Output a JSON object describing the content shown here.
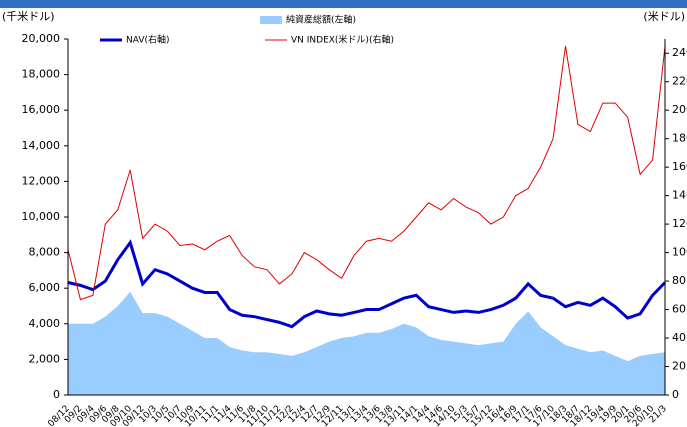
{
  "chart_data": {
    "type": "combo",
    "y_label": "(千米ドル)",
    "y2_label": "(米ドル)",
    "categories": [
      "08/12",
      "09/2",
      "09/4",
      "09/6",
      "09/8",
      "09/10",
      "09/12",
      "10/3",
      "10/5",
      "10/7",
      "10/9",
      "10/11",
      "11/1",
      "11/4",
      "11/6",
      "11/8",
      "11/10",
      "11/12",
      "12/2",
      "12/4",
      "12/7",
      "12/9",
      "12/11",
      "13/1",
      "13/4",
      "13/6",
      "13/8",
      "13/11",
      "14/1",
      "14/4",
      "14/6",
      "14/10",
      "15/3",
      "15/7",
      "15/12",
      "16/4",
      "16/9",
      "17/1",
      "17/6",
      "17/10",
      "18/3",
      "18/7",
      "18/12",
      "19/4",
      "19/9",
      "20/1",
      "20/6",
      "20/10",
      "21/3"
    ],
    "series": [
      {
        "name": "純資産総額(左軸)",
        "type": "area",
        "color": "#99ccff",
        "axis": "y",
        "values": [
          4000,
          4000,
          4000,
          4400,
          5000,
          5800,
          4600,
          4600,
          4400,
          4000,
          3600,
          3200,
          3200,
          2700,
          2500,
          2400,
          2400,
          2300,
          2200,
          2400,
          2700,
          3000,
          3200,
          3300,
          3500,
          3500,
          3700,
          4000,
          3800,
          3300,
          3100,
          3000,
          2900,
          2800,
          2900,
          3000,
          4000,
          4700,
          3800,
          3300,
          2800,
          2600,
          2400,
          2500,
          2200,
          1900,
          2200,
          2300,
          2400
        ]
      },
      {
        "name": "NAV(右軸)",
        "type": "line",
        "color": "#0000cc",
        "axis": "y2",
        "values": [
          79,
          77,
          74,
          80,
          95,
          107,
          78,
          88,
          85,
          80,
          75,
          72,
          72,
          60,
          56,
          55,
          53,
          51,
          48,
          55,
          59,
          57,
          56,
          58,
          60,
          60,
          64,
          68,
          70,
          62,
          60,
          58,
          59,
          58,
          60,
          63,
          68,
          78,
          70,
          68,
          62,
          65,
          63,
          68,
          62,
          54,
          57,
          70,
          79
        ]
      },
      {
        "name": "VN INDEX(米ドル)(右軸)",
        "type": "line",
        "color": "#e00000",
        "axis": "y2",
        "values": [
          102,
          67,
          70,
          120,
          130,
          158,
          110,
          120,
          115,
          105,
          106,
          102,
          108,
          112,
          98,
          90,
          88,
          78,
          85,
          100,
          95,
          88,
          82,
          98,
          108,
          110,
          108,
          115,
          125,
          135,
          130,
          138,
          132,
          128,
          120,
          125,
          140,
          145,
          160,
          180,
          245,
          190,
          185,
          205,
          205,
          195,
          155,
          165,
          245
        ]
      }
    ],
    "ylim": [
      0,
      20000
    ],
    "yticks": [
      0,
      {
        "value": 2000,
        "label": "2,000"
      },
      {
        "value": 4000,
        "label": "4,000"
      },
      {
        "value": 6000,
        "label": "6,000"
      },
      {
        "value": 8000,
        "label": "8,000"
      },
      {
        "value": 10000,
        "label": "10,000"
      },
      {
        "value": 12000,
        "label": "12,000"
      },
      {
        "value": 14000,
        "label": "14,000"
      },
      {
        "value": 16000,
        "label": "16,000"
      },
      {
        "value": 18000,
        "label": "18,000"
      },
      {
        "value": 20000,
        "label": "20,000"
      }
    ],
    "y2lim": [
      0,
      250
    ],
    "y2ticks": [
      0,
      20,
      40,
      60,
      80,
      100,
      120,
      140,
      160,
      180,
      200,
      220,
      240
    ]
  }
}
